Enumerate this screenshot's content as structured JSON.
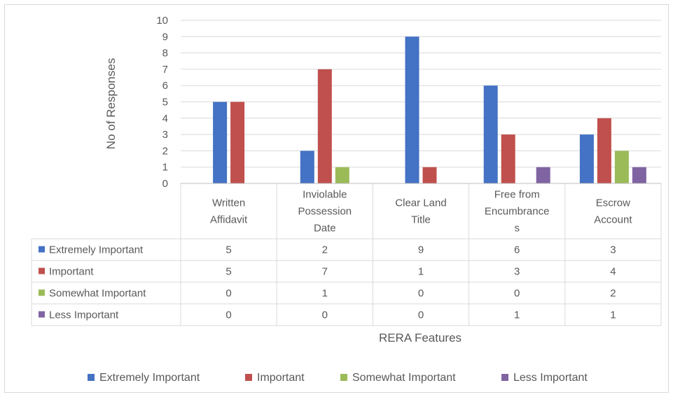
{
  "chart_data": {
    "type": "bar",
    "title": "",
    "xlabel": "RERA Features",
    "ylabel": "No of Responses",
    "ylim": [
      0,
      10
    ],
    "yticks": [
      "0",
      "1",
      "2",
      "3",
      "4",
      "5",
      "6",
      "7",
      "8",
      "9",
      "10"
    ],
    "grid": true,
    "legend_position": "bottom",
    "categories": [
      [
        "Written",
        "Affidavit"
      ],
      [
        "Inviolable",
        "Possession",
        "Date"
      ],
      [
        "Clear Land",
        "Title"
      ],
      [
        "Free from",
        "Encumbrance",
        "s"
      ],
      [
        "Escrow",
        "Account"
      ]
    ],
    "series": [
      {
        "name": "Extremely Important",
        "color": "#4472c4",
        "values": [
          5,
          2,
          9,
          6,
          3
        ]
      },
      {
        "name": "Important",
        "color": "#c0504d",
        "values": [
          5,
          7,
          1,
          3,
          4
        ]
      },
      {
        "name": "Somewhat Important",
        "color": "#9bbb59",
        "values": [
          0,
          1,
          0,
          0,
          2
        ]
      },
      {
        "name": "Less Important",
        "color": "#8064a2",
        "values": [
          0,
          0,
          0,
          1,
          1
        ]
      }
    ],
    "data_table": true
  }
}
